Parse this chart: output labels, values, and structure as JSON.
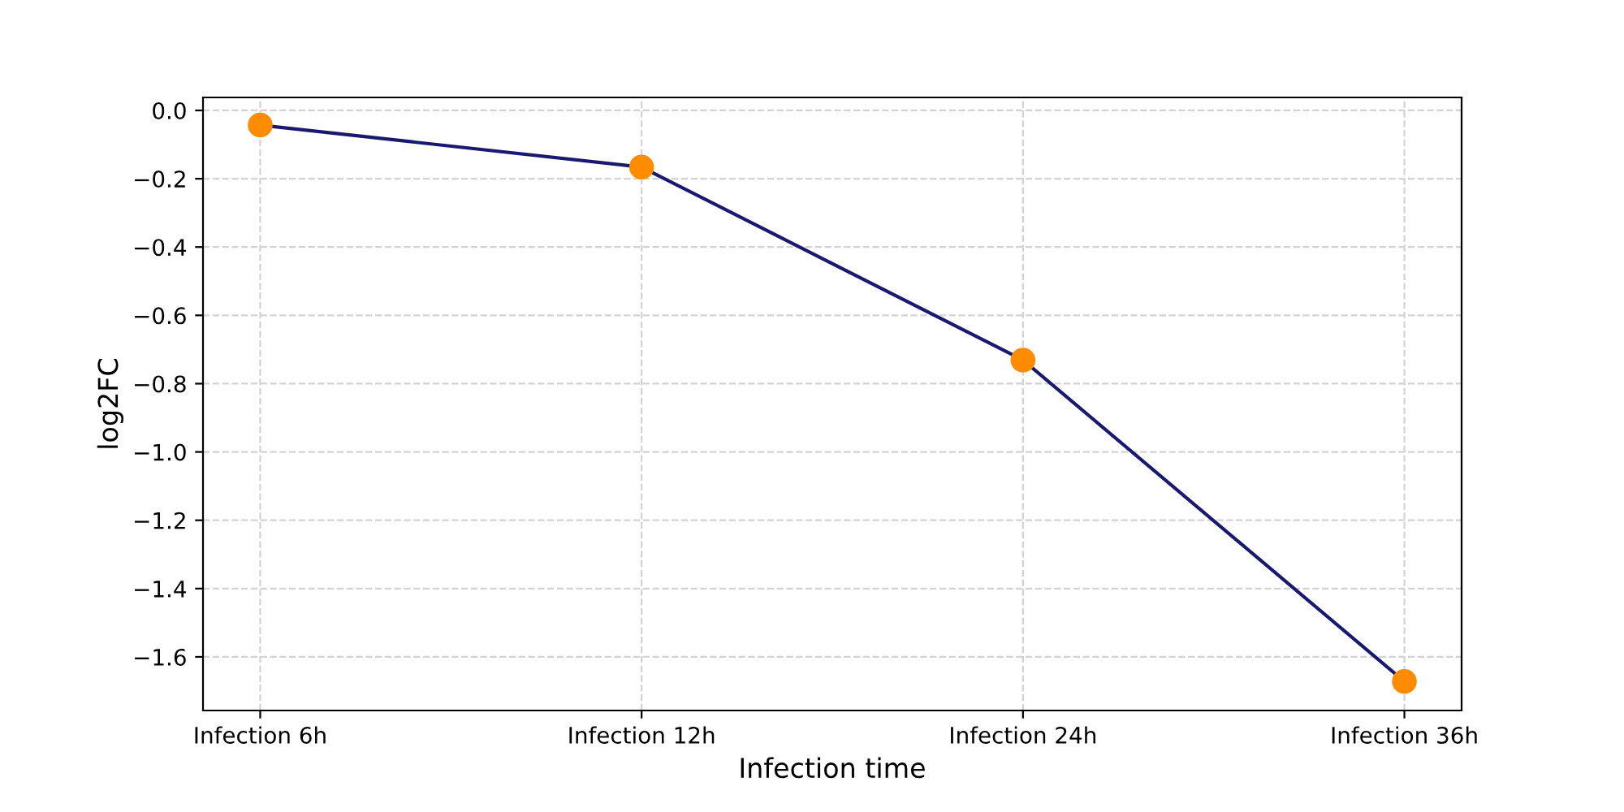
{
  "chart_data": {
    "type": "line",
    "xlabel": "Infection time",
    "ylabel": "log2FC",
    "categories": [
      "Infection 6h",
      "Infection 12h",
      "Infection 24h",
      "Infection 36h"
    ],
    "series": [
      {
        "color": "#191970",
        "colors": [
          "#ff8c00",
          "#ff8c00",
          "#ff8c00",
          "#ff8c00"
        ],
        "values": [
          -0.043,
          -0.166,
          -0.731,
          -1.672
        ]
      }
    ],
    "ylim": [
      -1.757,
      0.038
    ],
    "yticks": [
      {
        "value": 0.0,
        "label": "0.0"
      },
      -0.2,
      -0.4,
      -0.6,
      -0.8,
      {
        "value": -1.0,
        "label": "−1.0"
      },
      -1.2,
      -1.4,
      -1.6
    ],
    "marker": "circle",
    "grid": true,
    "line_style": "solid"
  }
}
